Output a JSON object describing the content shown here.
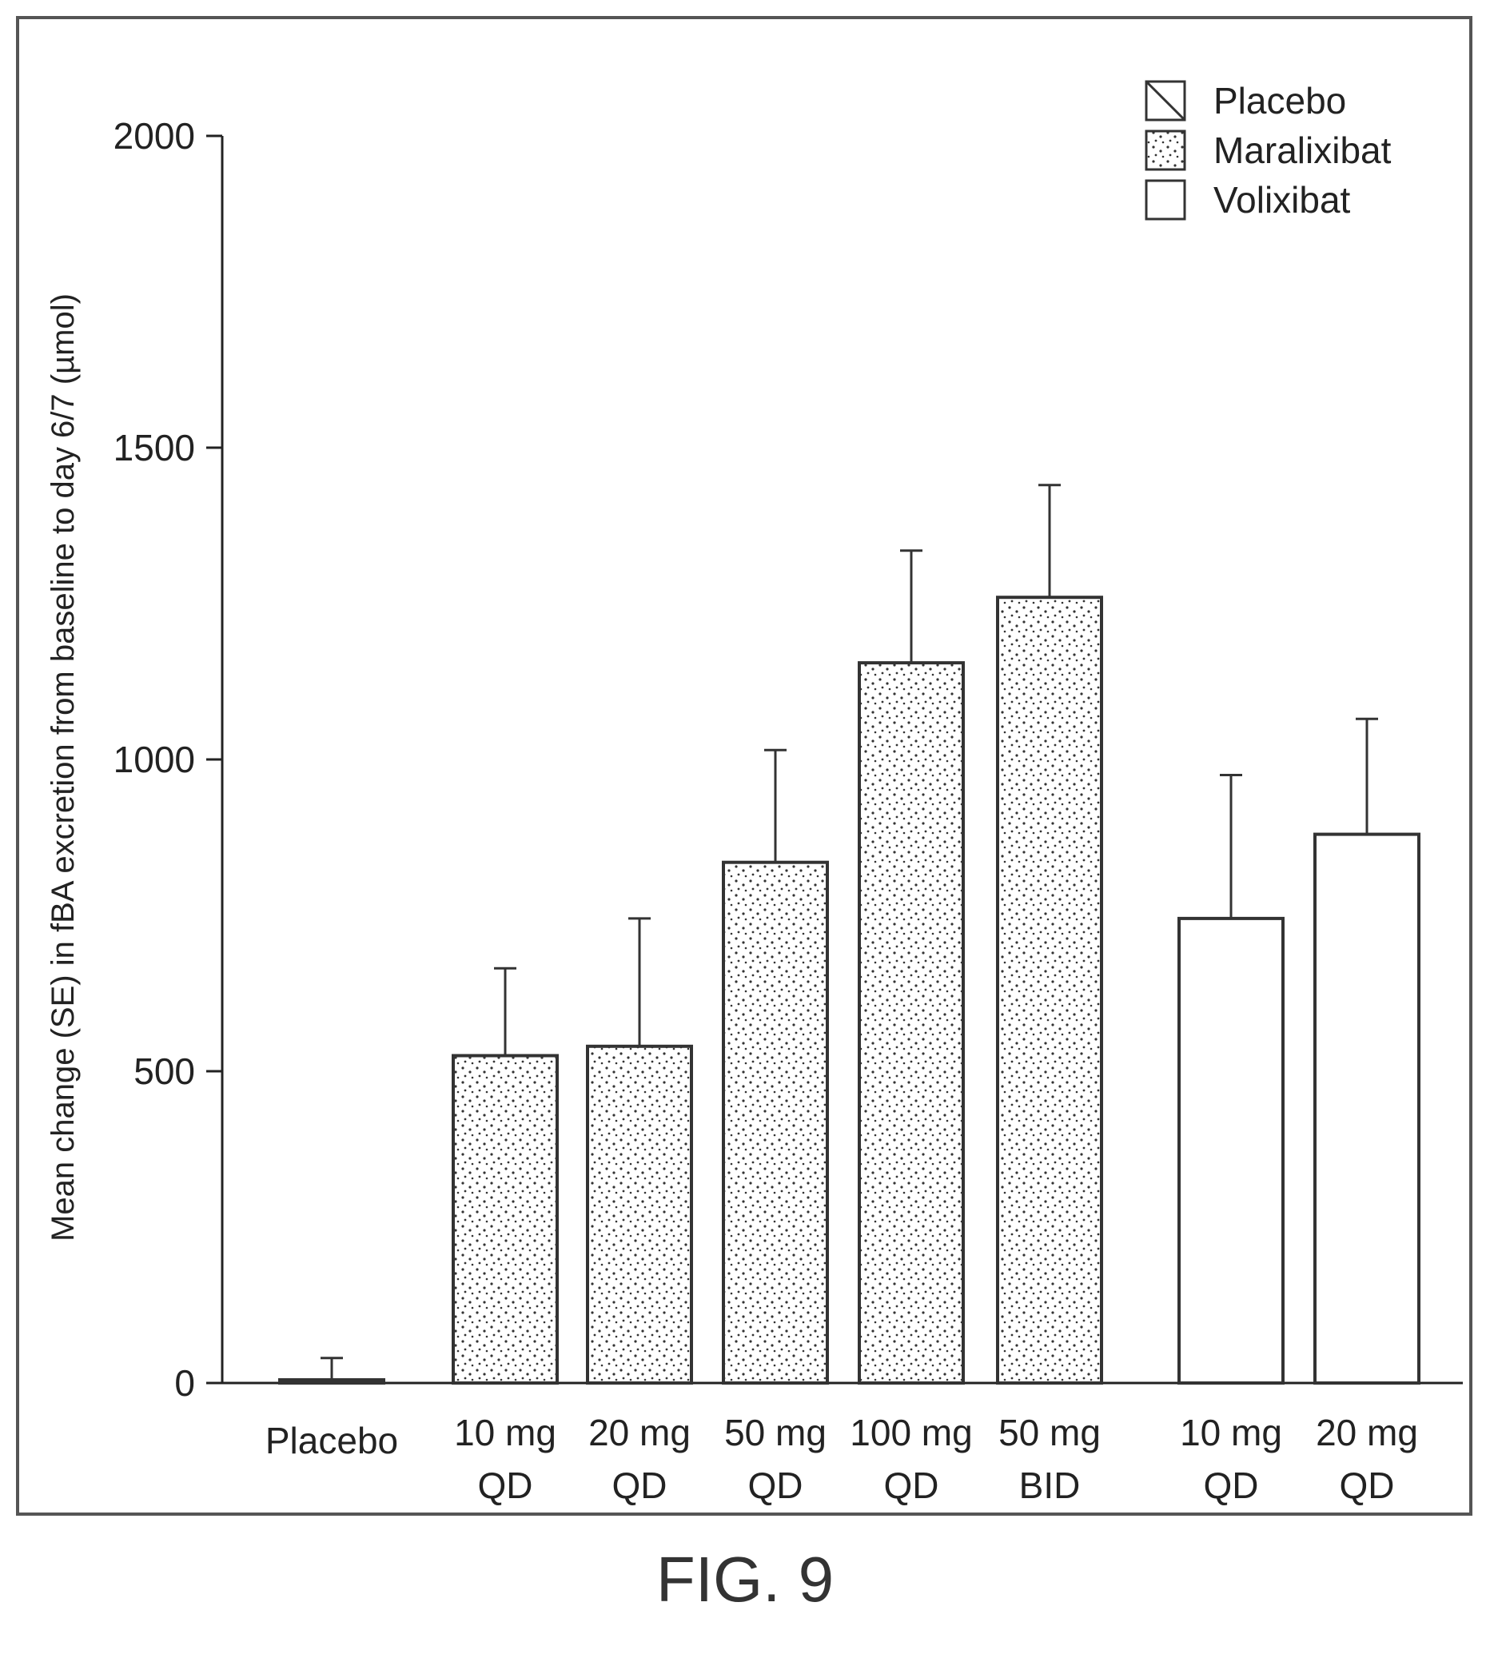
{
  "figure_caption": "FIG. 9",
  "chart_data": {
    "type": "bar",
    "ylabel": "Mean change (SE) in fBA excretion from baseline to day 6/7 (µmol)",
    "xlabel": "",
    "ylim": [
      0,
      2000
    ],
    "yticks": [
      0,
      500,
      1000,
      1500,
      2000
    ],
    "legend_placement": "top-right",
    "legend": [
      {
        "name": "Placebo",
        "pattern": "hatch"
      },
      {
        "name": "Maralixibat",
        "pattern": "dots"
      },
      {
        "name": "Volixibat",
        "pattern": "open"
      }
    ],
    "bars": [
      {
        "line1": "Placebo",
        "line2": "",
        "group": "Placebo",
        "value": 0,
        "error": 40
      },
      {
        "line1": "10 mg",
        "line2": "QD",
        "group": "Maralixibat",
        "value": 525,
        "error": 140
      },
      {
        "line1": "20 mg",
        "line2": "QD",
        "group": "Maralixibat",
        "value": 540,
        "error": 205
      },
      {
        "line1": "50 mg",
        "line2": "QD",
        "group": "Maralixibat",
        "value": 835,
        "error": 180
      },
      {
        "line1": "100 mg",
        "line2": "QD",
        "group": "Maralixibat",
        "value": 1155,
        "error": 180
      },
      {
        "line1": "50 mg",
        "line2": "BID",
        "group": "Maralixibat",
        "value": 1260,
        "error": 180
      },
      {
        "line1": "10 mg",
        "line2": "QD",
        "group": "Volixibat",
        "value": 745,
        "error": 230
      },
      {
        "line1": "20 mg",
        "line2": "QD",
        "group": "Volixibat",
        "value": 880,
        "error": 185
      }
    ]
  }
}
